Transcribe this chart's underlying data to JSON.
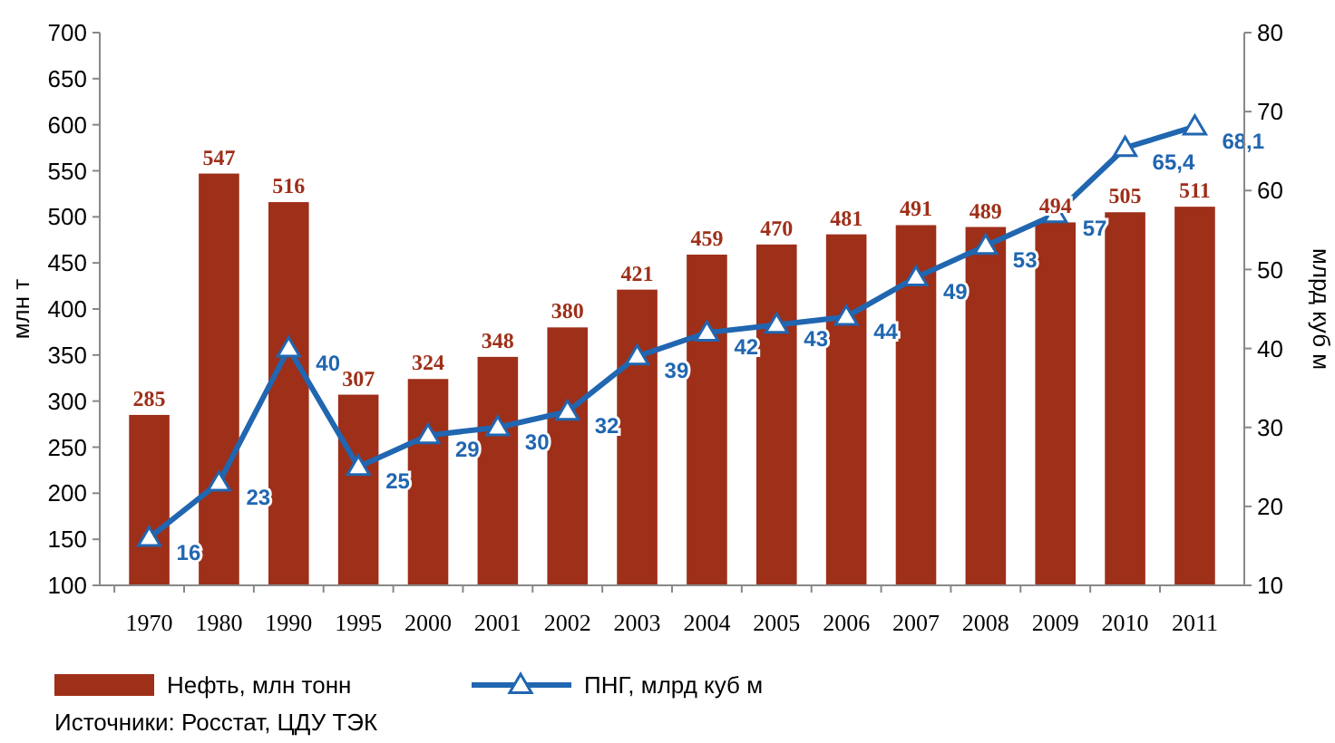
{
  "chart_data": {
    "type": "bar",
    "ylabel": "млн т",
    "y2label": "млрд куб м",
    "categories": [
      "1970",
      "1980",
      "1990",
      "1995",
      "2000",
      "2001",
      "2002",
      "2003",
      "2004",
      "2005",
      "2006",
      "2007",
      "2008",
      "2009",
      "2010",
      "2011"
    ],
    "ylim": [
      100,
      700
    ],
    "yticks": [
      100,
      150,
      200,
      250,
      300,
      350,
      400,
      450,
      500,
      550,
      600,
      650,
      700
    ],
    "y2lim": [
      10,
      80
    ],
    "y2ticks": [
      10,
      20,
      30,
      40,
      50,
      60,
      70,
      80
    ],
    "grid": false,
    "legend": "bottom",
    "series": [
      {
        "name": "Нефть, млн тонн",
        "color": "#9e2f19",
        "values": [
          285,
          547,
          516,
          307,
          324,
          348,
          380,
          421,
          459,
          470,
          481,
          491,
          489,
          494,
          505,
          511
        ],
        "value_labels": [
          "285",
          "547",
          "516",
          "307",
          "324",
          "348",
          "380",
          "421",
          "459",
          "470",
          "481",
          "491",
          "489",
          "494",
          "505",
          "511"
        ]
      },
      {
        "name": "ПНГ, млрд куб м",
        "type": "line",
        "axis": "y2",
        "color": "#2166b0",
        "marker": "triangle",
        "line_style": "solid",
        "values": [
          16,
          23,
          40,
          25,
          29,
          30,
          32,
          39,
          42,
          43,
          44,
          49,
          53,
          57,
          65.4,
          68.1
        ],
        "value_labels": [
          "16",
          "23",
          "40",
          "25",
          "29",
          "30",
          "32",
          "39",
          "42",
          "43",
          "44",
          "49",
          "53",
          "57",
          "65,4",
          "68,1"
        ]
      }
    ],
    "annotations": [
      "Источники: Росстат, ЦДУ ТЭК"
    ]
  }
}
